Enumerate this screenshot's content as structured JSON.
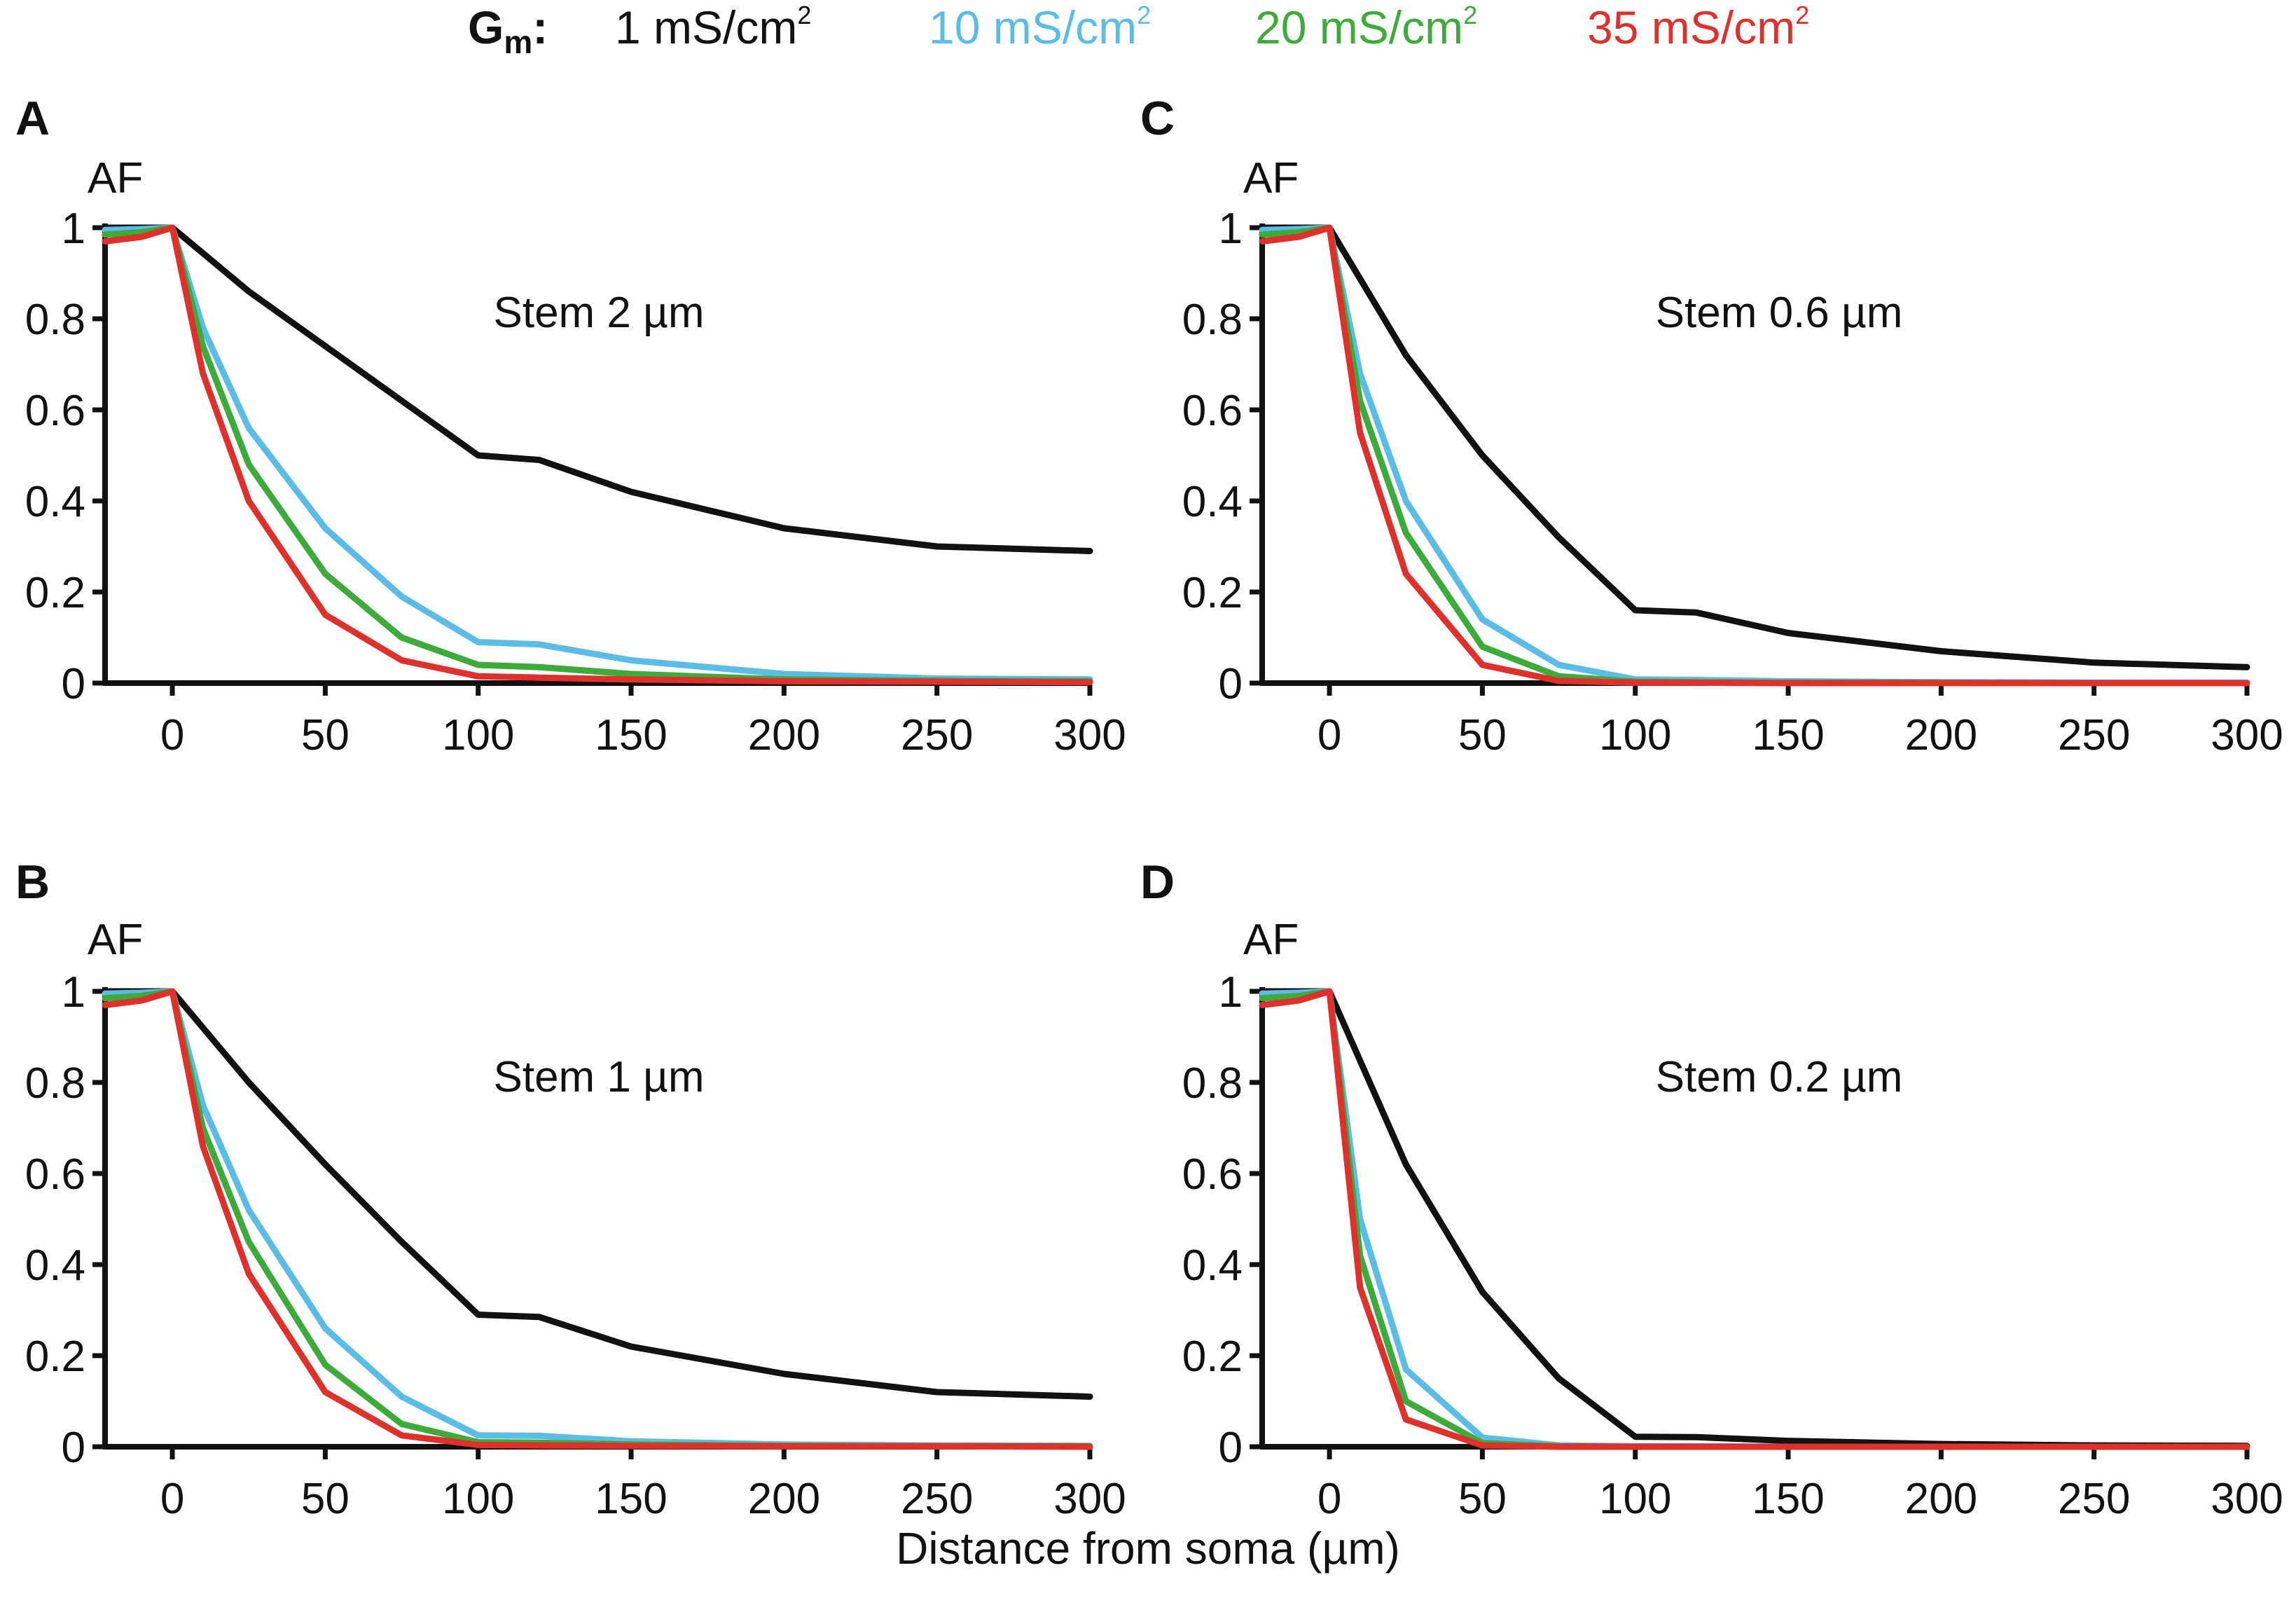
{
  "legend": {
    "label_main": "G",
    "label_sub": "m",
    "label_colon": ":",
    "items": [
      {
        "text": "1 mS/cm",
        "sup": "2",
        "color": "#111111"
      },
      {
        "text": "10 mS/cm",
        "sup": "2",
        "color": "#5bbde6"
      },
      {
        "text": "20 mS/cm",
        "sup": "2",
        "color": "#3cab3a"
      },
      {
        "text": "35 mS/cm",
        "sup": "2",
        "color": "#e0302b"
      }
    ]
  },
  "xlabel": "Distance from soma (µm)",
  "chart_data": [
    {
      "panel": "A",
      "type": "line",
      "title": "Stem 2 µm",
      "ylabel": "AF",
      "xlim": [
        -22,
        300
      ],
      "ylim": [
        0,
        1
      ],
      "xticks": [
        0,
        50,
        100,
        150,
        200,
        250,
        300
      ],
      "yticks": [
        0,
        0.2,
        0.4,
        0.6,
        0.8,
        1
      ],
      "ytick_labels": [
        "0",
        "0.2",
        "0.4",
        "0.6",
        "0.8",
        "1"
      ],
      "series": [
        {
          "name": "1 mS/cm2",
          "color": "#111111",
          "x": [
            -22,
            0,
            25,
            50,
            75,
            100,
            120,
            150,
            200,
            250,
            300
          ],
          "y": [
            1,
            1,
            0.86,
            0.74,
            0.62,
            0.5,
            0.49,
            0.42,
            0.34,
            0.3,
            0.29
          ]
        },
        {
          "name": "10 mS/cm2",
          "color": "#5bbde6",
          "x": [
            -22,
            -10,
            0,
            10,
            25,
            50,
            75,
            100,
            120,
            150,
            200,
            250,
            300
          ],
          "y": [
            0.995,
            0.997,
            1,
            0.78,
            0.56,
            0.34,
            0.19,
            0.09,
            0.085,
            0.05,
            0.02,
            0.01,
            0.008
          ]
        },
        {
          "name": "20 mS/cm2",
          "color": "#3cab3a",
          "x": [
            -22,
            -10,
            0,
            10,
            25,
            50,
            75,
            100,
            120,
            150,
            200,
            250,
            300
          ],
          "y": [
            0.985,
            0.99,
            1,
            0.74,
            0.48,
            0.24,
            0.1,
            0.04,
            0.035,
            0.02,
            0.008,
            0.005,
            0.004
          ]
        },
        {
          "name": "35 mS/cm2",
          "color": "#e0302b",
          "x": [
            -22,
            -10,
            0,
            10,
            25,
            50,
            75,
            100,
            120,
            150,
            200,
            250,
            300
          ],
          "y": [
            0.97,
            0.98,
            1,
            0.68,
            0.4,
            0.15,
            0.05,
            0.015,
            0.012,
            0.008,
            0.004,
            0.003,
            0.002
          ]
        }
      ]
    },
    {
      "panel": "B",
      "type": "line",
      "title": "Stem 1 µm",
      "ylabel": "AF",
      "xlim": [
        -22,
        300
      ],
      "ylim": [
        0,
        1
      ],
      "xticks": [
        0,
        50,
        100,
        150,
        200,
        250,
        300
      ],
      "yticks": [
        0,
        0.2,
        0.4,
        0.6,
        0.8,
        1
      ],
      "ytick_labels": [
        "0",
        "0.2",
        "0.4",
        "0.6",
        "0.8",
        "1"
      ],
      "series": [
        {
          "name": "1 mS/cm2",
          "color": "#111111",
          "x": [
            -22,
            0,
            25,
            50,
            75,
            100,
            120,
            150,
            200,
            250,
            300
          ],
          "y": [
            1,
            1,
            0.8,
            0.62,
            0.45,
            0.29,
            0.285,
            0.22,
            0.16,
            0.12,
            0.11
          ]
        },
        {
          "name": "10 mS/cm2",
          "color": "#5bbde6",
          "x": [
            -22,
            -10,
            0,
            10,
            25,
            50,
            75,
            100,
            120,
            150,
            200,
            250,
            300
          ],
          "y": [
            0.995,
            0.997,
            1,
            0.75,
            0.52,
            0.26,
            0.11,
            0.025,
            0.024,
            0.012,
            0.005,
            0.003,
            0.002
          ]
        },
        {
          "name": "20 mS/cm2",
          "color": "#3cab3a",
          "x": [
            -22,
            -10,
            0,
            10,
            25,
            50,
            75,
            100,
            120,
            150,
            200,
            250,
            300
          ],
          "y": [
            0.985,
            0.99,
            1,
            0.7,
            0.45,
            0.18,
            0.05,
            0.01,
            0.009,
            0.005,
            0.002,
            0.001,
            0.001
          ]
        },
        {
          "name": "35 mS/cm2",
          "color": "#e0302b",
          "x": [
            -22,
            -10,
            0,
            10,
            25,
            50,
            75,
            100,
            120,
            150,
            200,
            250,
            300
          ],
          "y": [
            0.97,
            0.98,
            1,
            0.66,
            0.38,
            0.12,
            0.025,
            0.004,
            0.003,
            0.002,
            0.001,
            0.001,
            0.0
          ]
        }
      ]
    },
    {
      "panel": "C",
      "type": "line",
      "title": "Stem 0.6 µm",
      "ylabel": "AF",
      "xlim": [
        -22,
        300
      ],
      "ylim": [
        0,
        1
      ],
      "xticks": [
        0,
        50,
        100,
        150,
        200,
        250,
        300
      ],
      "yticks": [
        0,
        0.2,
        0.4,
        0.6,
        0.8,
        1
      ],
      "ytick_labels": [
        "0",
        "0.2",
        "0.4",
        "0.6",
        "0.8",
        "1"
      ],
      "series": [
        {
          "name": "1 mS/cm2",
          "color": "#111111",
          "x": [
            -22,
            0,
            25,
            50,
            75,
            100,
            120,
            150,
            200,
            250,
            300
          ],
          "y": [
            1,
            1,
            0.72,
            0.5,
            0.32,
            0.16,
            0.155,
            0.11,
            0.07,
            0.045,
            0.035
          ]
        },
        {
          "name": "10 mS/cm2",
          "color": "#5bbde6",
          "x": [
            -22,
            -10,
            0,
            10,
            25,
            50,
            75,
            100,
            120,
            150,
            200,
            250,
            300
          ],
          "y": [
            0.995,
            0.997,
            1,
            0.68,
            0.4,
            0.14,
            0.04,
            0.008,
            0.007,
            0.004,
            0.002,
            0.001,
            0.001
          ]
        },
        {
          "name": "20 mS/cm2",
          "color": "#3cab3a",
          "x": [
            -22,
            -10,
            0,
            10,
            25,
            50,
            75,
            100,
            120,
            150,
            200,
            250,
            300
          ],
          "y": [
            0.985,
            0.99,
            1,
            0.62,
            0.33,
            0.08,
            0.015,
            0.003,
            0.002,
            0.001,
            0.001,
            0.0,
            0.0
          ]
        },
        {
          "name": "35 mS/cm2",
          "color": "#e0302b",
          "x": [
            -22,
            -10,
            0,
            10,
            25,
            50,
            75,
            100,
            120,
            150,
            200,
            250,
            300
          ],
          "y": [
            0.97,
            0.98,
            1,
            0.55,
            0.24,
            0.04,
            0.005,
            0.001,
            0.001,
            0.0,
            0.0,
            0.0,
            0.0
          ]
        }
      ]
    },
    {
      "panel": "D",
      "type": "line",
      "title": "Stem 0.2 µm",
      "ylabel": "AF",
      "xlim": [
        -22,
        300
      ],
      "ylim": [
        0,
        1
      ],
      "xticks": [
        0,
        50,
        100,
        150,
        200,
        250,
        300
      ],
      "yticks": [
        0,
        0.2,
        0.4,
        0.6,
        0.8,
        1
      ],
      "ytick_labels": [
        "0",
        "0.2",
        "0.4",
        "0.6",
        "0.8",
        "1"
      ],
      "series": [
        {
          "name": "1 mS/cm2",
          "color": "#111111",
          "x": [
            -22,
            0,
            25,
            50,
            75,
            100,
            120,
            150,
            200,
            250,
            300
          ],
          "y": [
            1,
            1,
            0.62,
            0.34,
            0.15,
            0.022,
            0.021,
            0.013,
            0.006,
            0.003,
            0.002
          ]
        },
        {
          "name": "10 mS/cm2",
          "color": "#5bbde6",
          "x": [
            -22,
            -10,
            0,
            10,
            25,
            50,
            75,
            100,
            120,
            150,
            200,
            250,
            300
          ],
          "y": [
            0.995,
            0.997,
            1,
            0.5,
            0.17,
            0.02,
            0.003,
            0.001,
            0.001,
            0.0,
            0.0,
            0.0,
            0.0
          ]
        },
        {
          "name": "20 mS/cm2",
          "color": "#3cab3a",
          "x": [
            -22,
            -10,
            0,
            10,
            25,
            50,
            75,
            100,
            120,
            150,
            200,
            250,
            300
          ],
          "y": [
            0.985,
            0.99,
            1,
            0.42,
            0.1,
            0.008,
            0.001,
            0.0,
            0.0,
            0.0,
            0.0,
            0.0,
            0.0
          ]
        },
        {
          "name": "35 mS/cm2",
          "color": "#e0302b",
          "x": [
            -22,
            -10,
            0,
            10,
            25,
            50,
            75,
            100,
            120,
            150,
            200,
            250,
            300
          ],
          "y": [
            0.97,
            0.98,
            1,
            0.35,
            0.06,
            0.003,
            0.0,
            0.0,
            0.0,
            0.0,
            0.0,
            0.0,
            0.0
          ]
        }
      ]
    }
  ]
}
